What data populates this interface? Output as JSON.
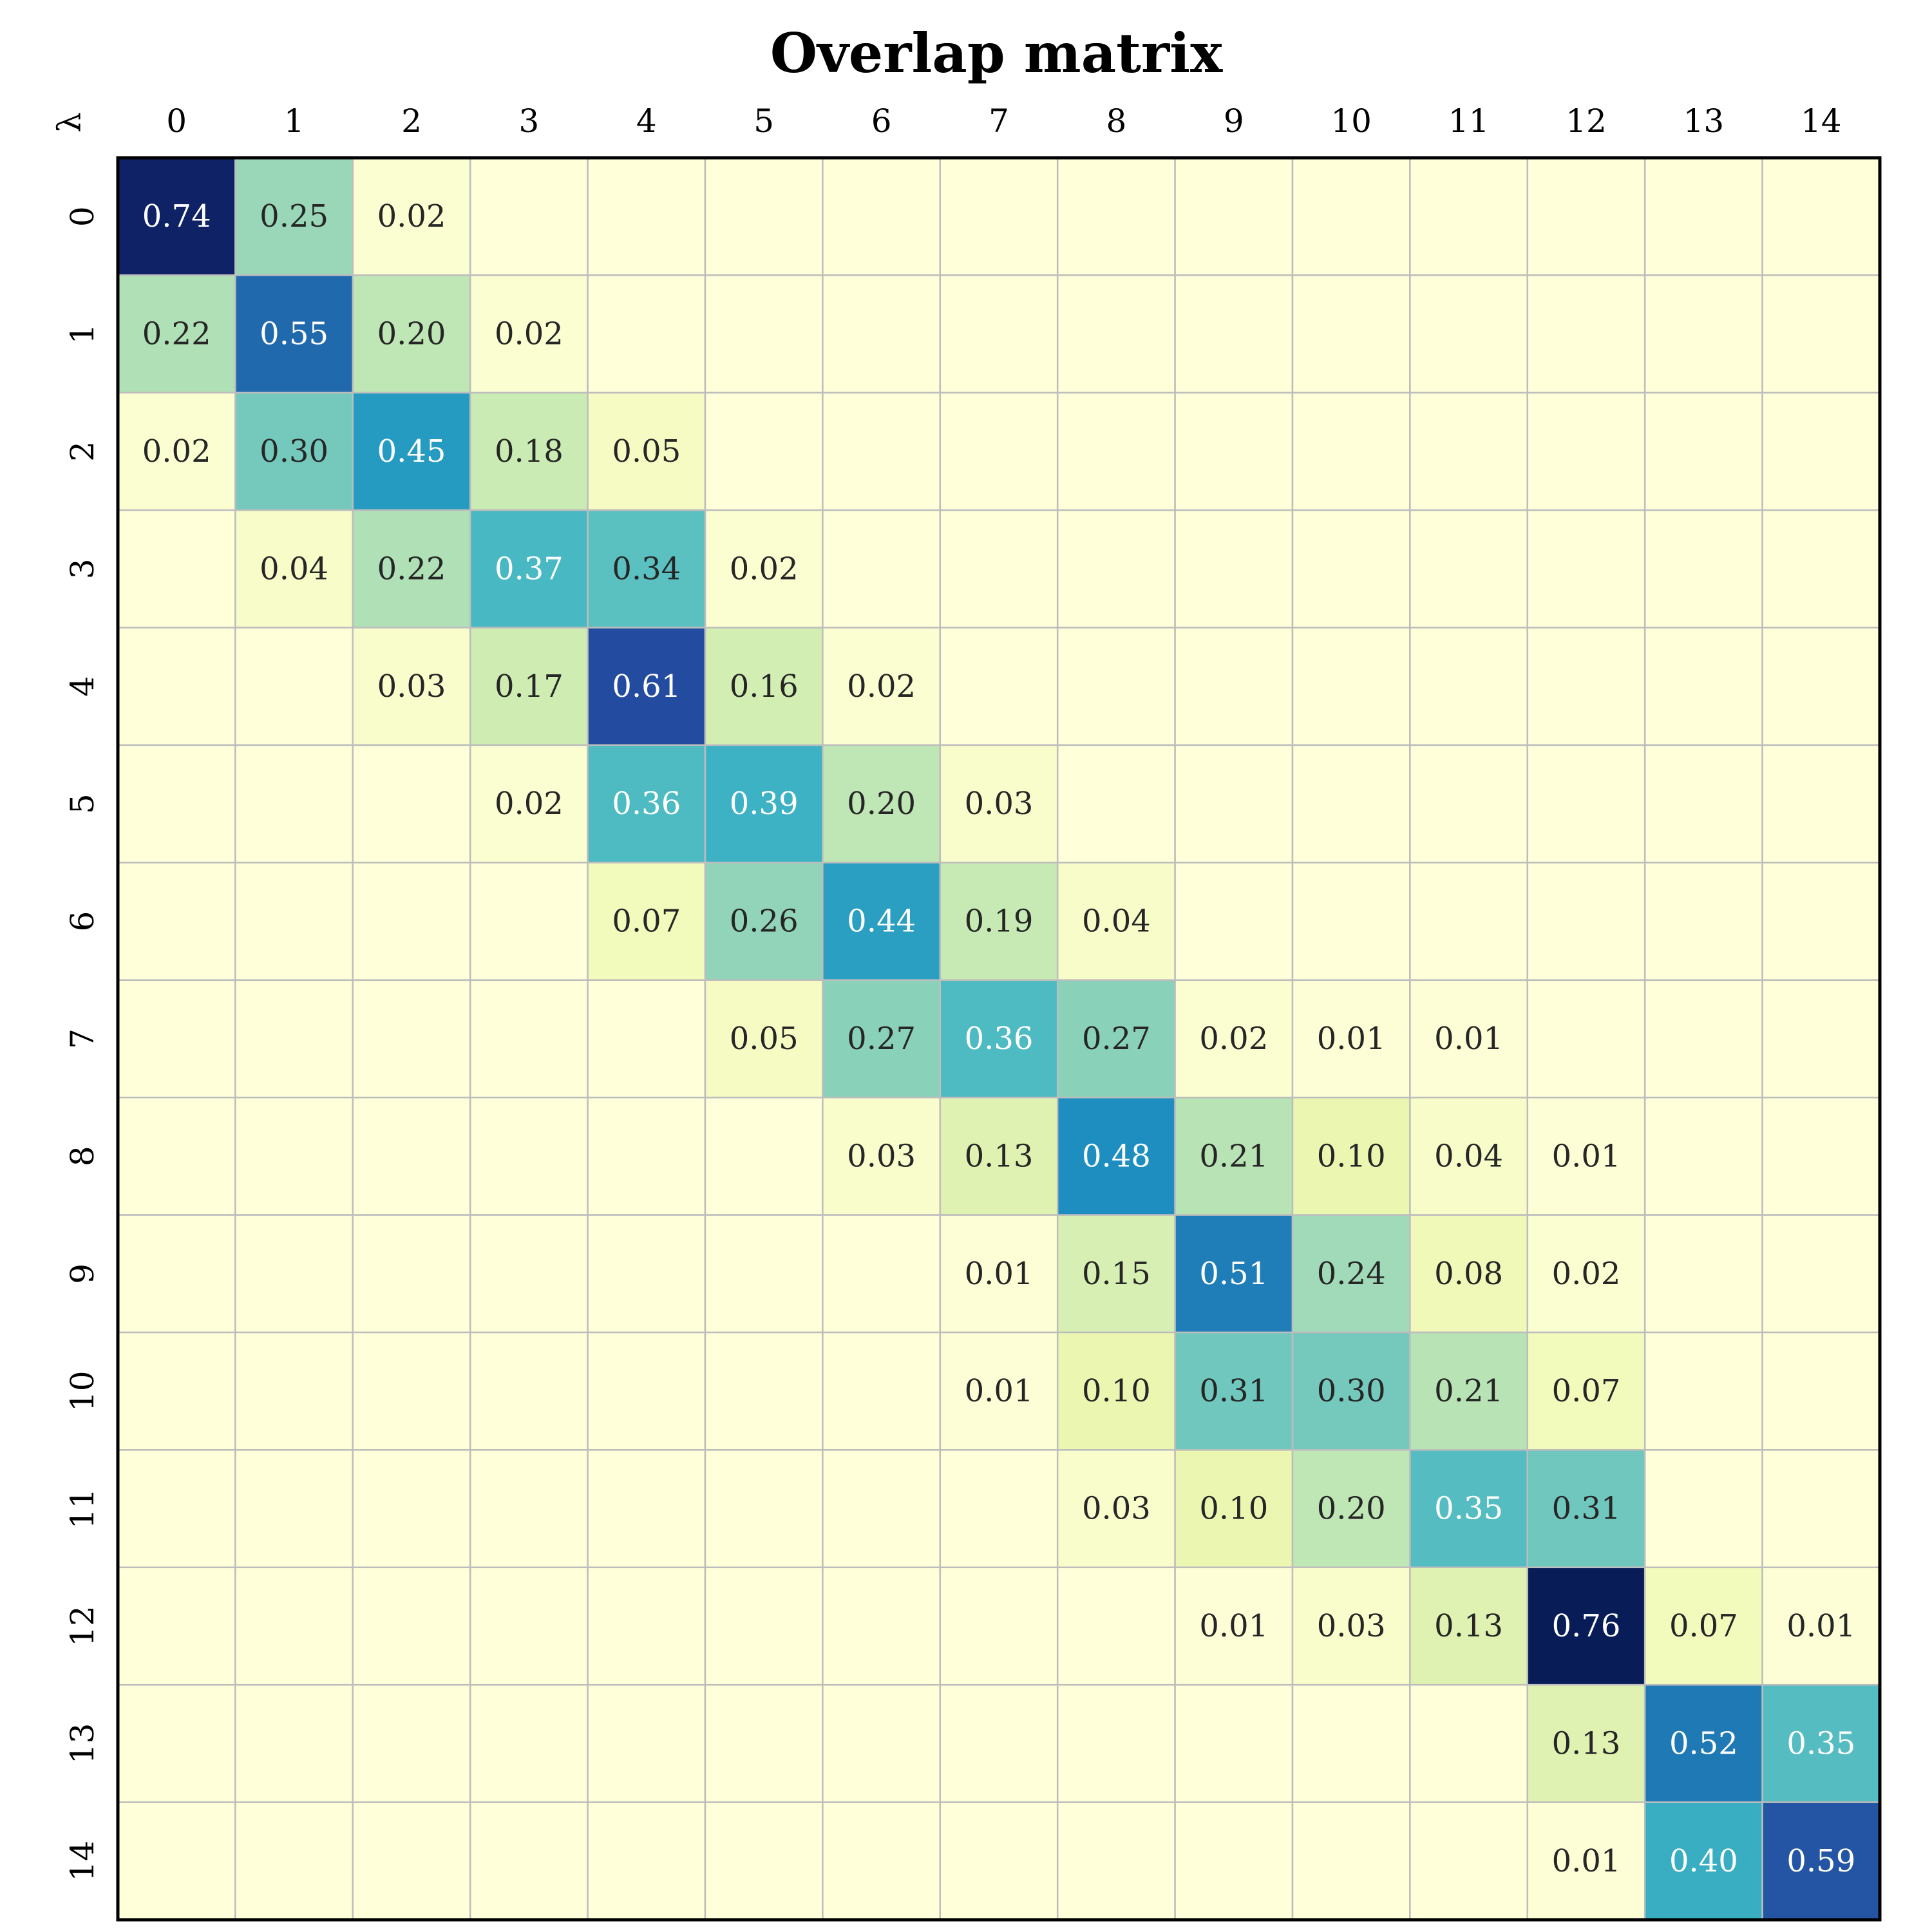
{
  "chart_data": {
    "type": "heatmap",
    "title": "Overlap matrix",
    "corner_label": "λ",
    "x_labels": [
      "0",
      "1",
      "2",
      "3",
      "4",
      "5",
      "6",
      "7",
      "8",
      "9",
      "10",
      "11",
      "12",
      "13",
      "14"
    ],
    "y_labels": [
      "0",
      "1",
      "2",
      "3",
      "4",
      "5",
      "6",
      "7",
      "8",
      "9",
      "10",
      "11",
      "12",
      "13",
      "14"
    ],
    "colormap": "YlGnBu",
    "vmin": 0,
    "vmax": 0.76,
    "grid": true,
    "cells": [
      [
        0.74,
        0.25,
        0.02,
        null,
        null,
        null,
        null,
        null,
        null,
        null,
        null,
        null,
        null,
        null,
        null
      ],
      [
        0.22,
        0.55,
        0.2,
        0.02,
        null,
        null,
        null,
        null,
        null,
        null,
        null,
        null,
        null,
        null,
        null
      ],
      [
        0.02,
        0.3,
        0.45,
        0.18,
        0.05,
        null,
        null,
        null,
        null,
        null,
        null,
        null,
        null,
        null,
        null
      ],
      [
        null,
        0.04,
        0.22,
        0.37,
        0.34,
        0.02,
        null,
        null,
        null,
        null,
        null,
        null,
        null,
        null,
        null
      ],
      [
        null,
        null,
        0.03,
        0.17,
        0.61,
        0.16,
        0.02,
        null,
        null,
        null,
        null,
        null,
        null,
        null,
        null
      ],
      [
        null,
        null,
        null,
        0.02,
        0.36,
        0.39,
        0.2,
        0.03,
        null,
        null,
        null,
        null,
        null,
        null,
        null
      ],
      [
        null,
        null,
        null,
        null,
        0.07,
        0.26,
        0.44,
        0.19,
        0.04,
        null,
        null,
        null,
        null,
        null,
        null
      ],
      [
        null,
        null,
        null,
        null,
        null,
        0.05,
        0.27,
        0.36,
        0.27,
        0.02,
        0.01,
        0.01,
        null,
        null,
        null
      ],
      [
        null,
        null,
        null,
        null,
        null,
        null,
        0.03,
        0.13,
        0.48,
        0.21,
        0.1,
        0.04,
        0.01,
        null,
        null
      ],
      [
        null,
        null,
        null,
        null,
        null,
        null,
        null,
        0.01,
        0.15,
        0.51,
        0.24,
        0.08,
        0.02,
        null,
        null
      ],
      [
        null,
        null,
        null,
        null,
        null,
        null,
        null,
        0.01,
        0.1,
        0.31,
        0.3,
        0.21,
        0.07,
        null,
        null
      ],
      [
        null,
        null,
        null,
        null,
        null,
        null,
        null,
        null,
        0.03,
        0.1,
        0.2,
        0.35,
        0.31,
        null,
        null
      ],
      [
        null,
        null,
        null,
        null,
        null,
        null,
        null,
        null,
        null,
        0.01,
        0.03,
        0.13,
        0.76,
        0.07,
        0.01
      ],
      [
        null,
        null,
        null,
        null,
        null,
        null,
        null,
        null,
        null,
        null,
        null,
        null,
        0.13,
        0.52,
        0.35
      ],
      [
        null,
        null,
        null,
        null,
        null,
        null,
        null,
        null,
        null,
        null,
        null,
        null,
        0.01,
        0.4,
        0.59
      ]
    ]
  }
}
